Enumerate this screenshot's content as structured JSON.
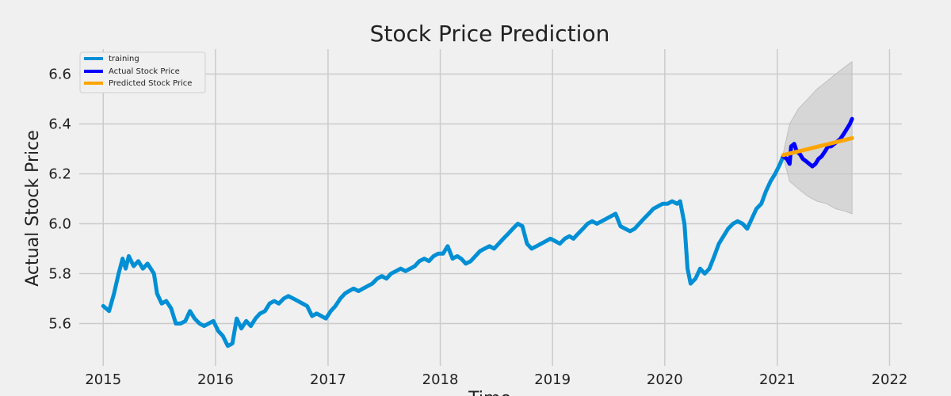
{
  "chart_data": {
    "type": "line",
    "title": "Stock Price Prediction",
    "xlabel": "Time",
    "ylabel": "Actual Stock Price",
    "xlim": [
      "2014-10-15",
      "2022-02-10"
    ],
    "ylim": [
      5.43,
      6.7
    ],
    "x_ticks": [
      "2015",
      "2016",
      "2017",
      "2018",
      "2019",
      "2020",
      "2021",
      "2022"
    ],
    "y_ticks": [
      "5.6",
      "5.8",
      "6.0",
      "6.2",
      "6.4",
      "6.6"
    ],
    "grid": true,
    "legend_position": "top-left",
    "legend": [
      "training",
      "Actual Stock Price",
      "Predicted Stock Price"
    ],
    "colors": {
      "background": "#f0f0f0",
      "grid": "#cbcbcb",
      "training": "#008fd5",
      "actual": "#0000ff",
      "predicted": "#ffa500",
      "confidence_band": "#c8c8c8"
    },
    "series": [
      {
        "name": "training",
        "points": [
          [
            "2015-01-01",
            5.67
          ],
          [
            "2015-01-20",
            5.65
          ],
          [
            "2015-02-05",
            5.72
          ],
          [
            "2015-02-20",
            5.8
          ],
          [
            "2015-03-05",
            5.86
          ],
          [
            "2015-03-15",
            5.82
          ],
          [
            "2015-03-25",
            5.87
          ],
          [
            "2015-04-10",
            5.83
          ],
          [
            "2015-04-25",
            5.85
          ],
          [
            "2015-05-10",
            5.82
          ],
          [
            "2015-05-25",
            5.84
          ],
          [
            "2015-06-15",
            5.8
          ],
          [
            "2015-06-25",
            5.72
          ],
          [
            "2015-07-10",
            5.68
          ],
          [
            "2015-07-25",
            5.69
          ],
          [
            "2015-08-10",
            5.66
          ],
          [
            "2015-08-25",
            5.6
          ],
          [
            "2015-09-10",
            5.6
          ],
          [
            "2015-09-25",
            5.61
          ],
          [
            "2015-10-10",
            5.65
          ],
          [
            "2015-10-25",
            5.62
          ],
          [
            "2015-11-10",
            5.6
          ],
          [
            "2015-11-25",
            5.59
          ],
          [
            "2015-12-10",
            5.6
          ],
          [
            "2015-12-25",
            5.61
          ],
          [
            "2016-01-10",
            5.57
          ],
          [
            "2016-01-25",
            5.55
          ],
          [
            "2016-02-10",
            5.51
          ],
          [
            "2016-02-25",
            5.52
          ],
          [
            "2016-03-10",
            5.62
          ],
          [
            "2016-03-25",
            5.58
          ],
          [
            "2016-04-10",
            5.61
          ],
          [
            "2016-04-25",
            5.59
          ],
          [
            "2016-05-10",
            5.62
          ],
          [
            "2016-05-25",
            5.64
          ],
          [
            "2016-06-10",
            5.65
          ],
          [
            "2016-06-25",
            5.68
          ],
          [
            "2016-07-10",
            5.69
          ],
          [
            "2016-07-25",
            5.68
          ],
          [
            "2016-08-10",
            5.7
          ],
          [
            "2016-08-25",
            5.71
          ],
          [
            "2016-09-10",
            5.7
          ],
          [
            "2016-09-25",
            5.69
          ],
          [
            "2016-10-10",
            5.68
          ],
          [
            "2016-10-25",
            5.67
          ],
          [
            "2016-11-10",
            5.63
          ],
          [
            "2016-11-25",
            5.64
          ],
          [
            "2016-12-10",
            5.63
          ],
          [
            "2016-12-25",
            5.62
          ],
          [
            "2017-01-10",
            5.65
          ],
          [
            "2017-01-25",
            5.67
          ],
          [
            "2017-02-10",
            5.7
          ],
          [
            "2017-02-25",
            5.72
          ],
          [
            "2017-03-10",
            5.73
          ],
          [
            "2017-03-25",
            5.74
          ],
          [
            "2017-04-10",
            5.73
          ],
          [
            "2017-04-25",
            5.74
          ],
          [
            "2017-05-10",
            5.75
          ],
          [
            "2017-05-25",
            5.76
          ],
          [
            "2017-06-10",
            5.78
          ],
          [
            "2017-06-25",
            5.79
          ],
          [
            "2017-07-10",
            5.78
          ],
          [
            "2017-07-25",
            5.8
          ],
          [
            "2017-08-10",
            5.81
          ],
          [
            "2017-08-25",
            5.82
          ],
          [
            "2017-09-10",
            5.81
          ],
          [
            "2017-09-25",
            5.82
          ],
          [
            "2017-10-10",
            5.83
          ],
          [
            "2017-10-25",
            5.85
          ],
          [
            "2017-11-10",
            5.86
          ],
          [
            "2017-11-25",
            5.85
          ],
          [
            "2017-12-10",
            5.87
          ],
          [
            "2017-12-25",
            5.88
          ],
          [
            "2018-01-10",
            5.88
          ],
          [
            "2018-01-25",
            5.91
          ],
          [
            "2018-02-10",
            5.86
          ],
          [
            "2018-02-25",
            5.87
          ],
          [
            "2018-03-10",
            5.86
          ],
          [
            "2018-03-25",
            5.84
          ],
          [
            "2018-04-10",
            5.85
          ],
          [
            "2018-04-25",
            5.87
          ],
          [
            "2018-05-10",
            5.89
          ],
          [
            "2018-05-25",
            5.9
          ],
          [
            "2018-06-10",
            5.91
          ],
          [
            "2018-06-25",
            5.9
          ],
          [
            "2018-07-10",
            5.92
          ],
          [
            "2018-07-25",
            5.94
          ],
          [
            "2018-08-10",
            5.96
          ],
          [
            "2018-08-25",
            5.98
          ],
          [
            "2018-09-10",
            6.0
          ],
          [
            "2018-09-25",
            5.99
          ],
          [
            "2018-10-10",
            5.92
          ],
          [
            "2018-10-25",
            5.9
          ],
          [
            "2018-11-10",
            5.91
          ],
          [
            "2018-11-25",
            5.92
          ],
          [
            "2018-12-10",
            5.93
          ],
          [
            "2018-12-25",
            5.94
          ],
          [
            "2019-01-10",
            5.93
          ],
          [
            "2019-01-25",
            5.92
          ],
          [
            "2019-02-10",
            5.94
          ],
          [
            "2019-02-25",
            5.95
          ],
          [
            "2019-03-10",
            5.94
          ],
          [
            "2019-03-25",
            5.96
          ],
          [
            "2019-04-10",
            5.98
          ],
          [
            "2019-04-25",
            6.0
          ],
          [
            "2019-05-10",
            6.01
          ],
          [
            "2019-05-25",
            6.0
          ],
          [
            "2019-06-10",
            6.01
          ],
          [
            "2019-06-25",
            6.02
          ],
          [
            "2019-07-10",
            6.03
          ],
          [
            "2019-07-25",
            6.04
          ],
          [
            "2019-08-10",
            5.99
          ],
          [
            "2019-08-25",
            5.98
          ],
          [
            "2019-09-10",
            5.97
          ],
          [
            "2019-09-25",
            5.98
          ],
          [
            "2019-10-10",
            6.0
          ],
          [
            "2019-10-25",
            6.02
          ],
          [
            "2019-11-10",
            6.04
          ],
          [
            "2019-11-25",
            6.06
          ],
          [
            "2019-12-10",
            6.07
          ],
          [
            "2019-12-25",
            6.08
          ],
          [
            "2020-01-10",
            6.08
          ],
          [
            "2020-01-25",
            6.09
          ],
          [
            "2020-02-10",
            6.08
          ],
          [
            "2020-02-20",
            6.09
          ],
          [
            "2020-03-05",
            6.0
          ],
          [
            "2020-03-15",
            5.82
          ],
          [
            "2020-03-25",
            5.76
          ],
          [
            "2020-04-10",
            5.78
          ],
          [
            "2020-04-25",
            5.82
          ],
          [
            "2020-05-10",
            5.8
          ],
          [
            "2020-05-25",
            5.82
          ],
          [
            "2020-06-10",
            5.87
          ],
          [
            "2020-06-25",
            5.92
          ],
          [
            "2020-07-10",
            5.95
          ],
          [
            "2020-07-25",
            5.98
          ],
          [
            "2020-08-10",
            6.0
          ],
          [
            "2020-08-25",
            6.01
          ],
          [
            "2020-09-10",
            6.0
          ],
          [
            "2020-09-25",
            5.98
          ],
          [
            "2020-10-10",
            6.02
          ],
          [
            "2020-10-25",
            6.06
          ],
          [
            "2020-11-10",
            6.08
          ],
          [
            "2020-11-25",
            6.13
          ],
          [
            "2020-12-10",
            6.17
          ],
          [
            "2020-12-25",
            6.2
          ],
          [
            "2021-01-10",
            6.24
          ],
          [
            "2021-01-20",
            6.27
          ]
        ]
      },
      {
        "name": "Actual Stock Price",
        "points": [
          [
            "2021-01-20",
            6.27
          ],
          [
            "2021-02-01",
            6.26
          ],
          [
            "2021-02-10",
            6.24
          ],
          [
            "2021-02-15",
            6.31
          ],
          [
            "2021-02-25",
            6.32
          ],
          [
            "2021-03-05",
            6.29
          ],
          [
            "2021-03-15",
            6.28
          ],
          [
            "2021-03-25",
            6.26
          ],
          [
            "2021-04-05",
            6.25
          ],
          [
            "2021-04-15",
            6.24
          ],
          [
            "2021-04-25",
            6.23
          ],
          [
            "2021-05-05",
            6.24
          ],
          [
            "2021-05-15",
            6.26
          ],
          [
            "2021-05-25",
            6.27
          ],
          [
            "2021-06-05",
            6.29
          ],
          [
            "2021-06-15",
            6.31
          ],
          [
            "2021-06-25",
            6.31
          ],
          [
            "2021-07-05",
            6.32
          ],
          [
            "2021-07-15",
            6.33
          ],
          [
            "2021-07-25",
            6.34
          ],
          [
            "2021-08-05",
            6.36
          ],
          [
            "2021-08-15",
            6.38
          ],
          [
            "2021-08-25",
            6.4
          ],
          [
            "2021-09-01",
            6.42
          ]
        ]
      },
      {
        "name": "Predicted Stock Price",
        "points": [
          [
            "2021-01-20",
            6.275
          ],
          [
            "2021-09-01",
            6.343
          ]
        ]
      }
    ],
    "confidence_band": {
      "x": [
        "2021-01-20",
        "2021-02-10",
        "2021-03-10",
        "2021-04-10",
        "2021-05-10",
        "2021-06-10",
        "2021-07-10",
        "2021-08-10",
        "2021-09-01"
      ],
      "upper": [
        6.28,
        6.4,
        6.46,
        6.5,
        6.54,
        6.57,
        6.6,
        6.63,
        6.65
      ],
      "lower": [
        6.27,
        6.17,
        6.14,
        6.11,
        6.09,
        6.08,
        6.06,
        6.05,
        6.04
      ]
    }
  }
}
